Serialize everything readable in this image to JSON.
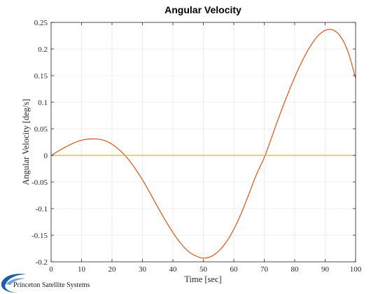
{
  "chart_data": {
    "type": "line",
    "title": "Angular Velocity",
    "xlabel": "Time [sec]",
    "ylabel": "Angular Velocity [deg/s]",
    "xlim": [
      0,
      100
    ],
    "ylim": [
      -0.2,
      0.25
    ],
    "xticks": [
      "0",
      "10",
      "20",
      "30",
      "40",
      "50",
      "60",
      "70",
      "80",
      "90",
      "100"
    ],
    "yticks": [
      "-0.2",
      "-0.15",
      "-0.1",
      "-0.05",
      "0",
      "0.05",
      "0.1",
      "0.15",
      "0.2",
      "0.25"
    ],
    "grid": true,
    "series": [
      {
        "color": "#D95319",
        "x": [
          0,
          2.5,
          5,
          7.5,
          10,
          12.5,
          15,
          17.5,
          20,
          22.5,
          25,
          27.5,
          30,
          32.5,
          35,
          37.5,
          40,
          42.5,
          45,
          47.5,
          50,
          52.5,
          55,
          57.5,
          60,
          62.5,
          65,
          67.5,
          70,
          72.5,
          75,
          77.5,
          80,
          82.5,
          85,
          87.5,
          90,
          92.5,
          95,
          97.5,
          100
        ],
        "values": [
          0,
          0.0085,
          0.0165,
          0.0235,
          0.0285,
          0.0308,
          0.0308,
          0.028,
          0.021,
          0.01,
          -0.005,
          -0.024,
          -0.046,
          -0.071,
          -0.097,
          -0.122,
          -0.145,
          -0.165,
          -0.18,
          -0.189,
          -0.193,
          -0.19,
          -0.18,
          -0.163,
          -0.139,
          -0.108,
          -0.072,
          -0.035,
          -0.004,
          0.035,
          0.075,
          0.112,
          0.147,
          0.178,
          0.204,
          0.224,
          0.235,
          0.236,
          0.224,
          0.195,
          0.145
        ]
      },
      {
        "color": "#EDB120",
        "x": [
          0,
          100
        ],
        "values": [
          0,
          0
        ]
      }
    ]
  },
  "logo": {
    "text": "Princeton Satellite Systems",
    "accent_color": "#1f5fa8"
  }
}
